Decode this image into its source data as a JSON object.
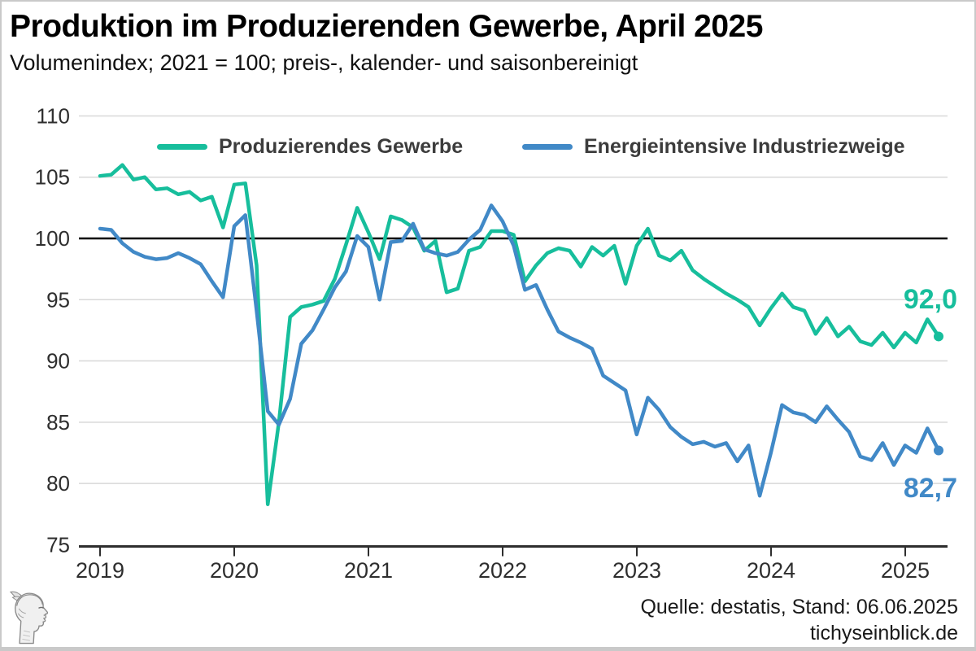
{
  "header": {
    "title": "Produktion im Produzierenden Gewerbe, April 2025",
    "subtitle": "Volumenindex; 2021 = 100; preis-, kalender- und saisonbereinigt"
  },
  "legend": [
    {
      "label": "Produzierendes Gewerbe",
      "color": "#17be9c"
    },
    {
      "label": "Energieintensive Industriezweige",
      "color": "#4189c7"
    }
  ],
  "source": {
    "line1": "Quelle: destatis, Stand: 06.06.2025",
    "line2": "tichyseinblick.de"
  },
  "logo_icon": "hermes-head-engraving",
  "chart_data": {
    "type": "line",
    "frequency": "monthly",
    "x_start": "2019-01",
    "x_end": "2025-04",
    "x_tick_labels": [
      "2019",
      "2020",
      "2021",
      "2022",
      "2023",
      "2024",
      "2025"
    ],
    "ylabel": "",
    "xlabel": "",
    "ylim": [
      75,
      110
    ],
    "y_ticks": [
      75,
      80,
      85,
      90,
      95,
      100,
      105,
      110
    ],
    "reference_line": 100,
    "grid": true,
    "grid_color": "#d8d8d8",
    "axis_color": "#2e2e2e",
    "reference_line_color": "#000000",
    "legend_position": "top-inside",
    "series": [
      {
        "name": "Produzierendes Gewerbe",
        "color": "#17be9c",
        "end_label": "92,0",
        "end_value": 92.0,
        "values": [
          105.1,
          105.2,
          106.0,
          104.8,
          105.0,
          104.0,
          104.1,
          103.6,
          103.8,
          103.1,
          103.4,
          100.9,
          104.4,
          104.5,
          97.8,
          78.3,
          85.0,
          93.6,
          94.4,
          94.6,
          94.9,
          96.7,
          99.5,
          102.5,
          100.5,
          98.3,
          101.8,
          101.5,
          100.9,
          99.0,
          99.8,
          95.6,
          95.9,
          99.0,
          99.3,
          100.6,
          100.6,
          100.3,
          96.5,
          97.8,
          98.8,
          99.2,
          99.0,
          97.7,
          99.3,
          98.6,
          99.4,
          96.3,
          99.4,
          100.8,
          98.6,
          98.2,
          99.0,
          97.4,
          96.7,
          96.1,
          95.5,
          95.0,
          94.4,
          92.9,
          94.3,
          95.5,
          94.4,
          94.1,
          92.2,
          93.5,
          92.0,
          92.8,
          91.6,
          91.3,
          92.3,
          91.1,
          92.3,
          91.5,
          93.4,
          92.0
        ]
      },
      {
        "name": "Energieintensive Industriezweige",
        "color": "#4189c7",
        "end_label": "82,7",
        "end_value": 82.7,
        "values": [
          100.8,
          100.7,
          99.6,
          98.9,
          98.5,
          98.3,
          98.4,
          98.8,
          98.4,
          97.9,
          96.5,
          95.2,
          101.0,
          101.9,
          94.1,
          85.9,
          84.8,
          86.9,
          91.4,
          92.5,
          94.2,
          96.0,
          97.3,
          100.2,
          99.3,
          95.0,
          99.7,
          99.8,
          101.2,
          99.1,
          98.8,
          98.6,
          98.9,
          99.9,
          100.7,
          102.7,
          101.4,
          99.4,
          95.8,
          96.2,
          94.2,
          92.4,
          91.9,
          91.5,
          91.0,
          88.8,
          88.2,
          87.6,
          84.0,
          87.0,
          86.0,
          84.6,
          83.8,
          83.2,
          83.4,
          83.0,
          83.3,
          81.8,
          83.1,
          79.0,
          82.5,
          86.4,
          85.8,
          85.6,
          85.0,
          86.3,
          85.2,
          84.2,
          82.2,
          81.9,
          83.3,
          81.5,
          83.1,
          82.5,
          84.5,
          82.7
        ]
      }
    ]
  }
}
